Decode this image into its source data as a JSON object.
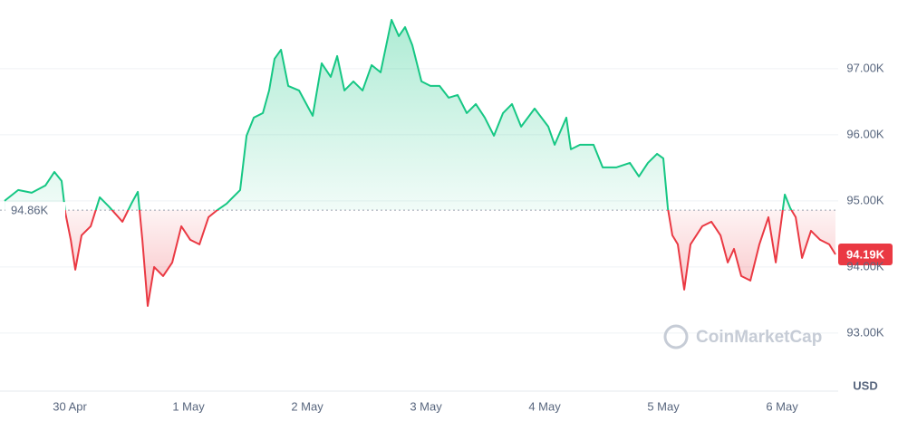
{
  "chart_data": {
    "type": "line",
    "x": [
      -0.55,
      -0.435,
      -0.321,
      -0.206,
      -0.13,
      -0.069,
      -0.038,
      0.008,
      0.046,
      0.099,
      0.176,
      0.252,
      0.328,
      0.443,
      0.519,
      0.573,
      0.611,
      0.656,
      0.71,
      0.786,
      0.863,
      0.939,
      1.015,
      1.092,
      1.168,
      1.244,
      1.321,
      1.435,
      1.489,
      1.55,
      1.626,
      1.679,
      1.725,
      1.779,
      1.84,
      1.931,
      2.046,
      2.122,
      2.198,
      2.252,
      2.313,
      2.389,
      2.466,
      2.542,
      2.618,
      2.71,
      2.771,
      2.824,
      2.885,
      2.962,
      3.038,
      3.115,
      3.191,
      3.267,
      3.344,
      3.42,
      3.496,
      3.573,
      3.649,
      3.725,
      3.802,
      3.916,
      4.031,
      4.084,
      4.183,
      4.221,
      4.298,
      4.412,
      4.489,
      4.603,
      4.718,
      4.794,
      4.87,
      4.947,
      5.0,
      5.038,
      5.076,
      5.122,
      5.176,
      5.229,
      5.328,
      5.405,
      5.481,
      5.542,
      5.595,
      5.656,
      5.733,
      5.809,
      5.885,
      5.947,
      6.023,
      6.069,
      6.115,
      6.168,
      6.244,
      6.321,
      6.397,
      6.45
    ],
    "series": [
      {
        "name": "USD",
        "values": [
          95000,
          95164,
          95123,
          95233,
          95438,
          95301,
          94822,
          94411,
          93959,
          94479,
          94616,
          95055,
          94918,
          94685,
          94959,
          95137,
          94411,
          93411,
          94000,
          93863,
          94068,
          94616,
          94411,
          94342,
          94753,
          94863,
          94959,
          95164,
          95986,
          96260,
          96329,
          96671,
          97151,
          97288,
          96740,
          96671,
          96288,
          97082,
          96877,
          97192,
          96671,
          96808,
          96671,
          97055,
          96945,
          97740,
          97493,
          97630,
          97356,
          96808,
          96740,
          96740,
          96562,
          96603,
          96329,
          96466,
          96260,
          95986,
          96329,
          96466,
          96123,
          96397,
          96123,
          95849,
          96260,
          95781,
          95849,
          95849,
          95507,
          95507,
          95575,
          95370,
          95575,
          95712,
          95644,
          94890,
          94479,
          94342,
          93658,
          94342,
          94616,
          94685,
          94479,
          94068,
          94274,
          93863,
          93795,
          94342,
          94753,
          94068,
          95096,
          94890,
          94753,
          94137,
          94548,
          94411,
          94342,
          94190
        ]
      }
    ],
    "colors": {
      "up": "#16c784",
      "down": "#ea3943"
    },
    "baseline": {
      "value": 94860,
      "label": "94.86K"
    },
    "last_price": {
      "value": 94190,
      "label": "94.19K"
    },
    "xlim": [
      -0.55,
      6.45
    ],
    "xticks": [
      {
        "value": 0,
        "label": "30 Apr"
      },
      {
        "value": 1,
        "label": "1 May"
      },
      {
        "value": 2,
        "label": "2 May"
      },
      {
        "value": 3,
        "label": "3 May"
      },
      {
        "value": 4,
        "label": "4 May"
      },
      {
        "value": 5,
        "label": "5 May"
      },
      {
        "value": 6,
        "label": "6 May"
      }
    ],
    "ylim": [
      92560,
      98040
    ],
    "yticks": [
      {
        "value": 93000,
        "label": "93.00K"
      },
      {
        "value": 94000,
        "label": "94.00K"
      },
      {
        "value": 95000,
        "label": "95.00K"
      },
      {
        "value": 96000,
        "label": "96.00K"
      },
      {
        "value": 97000,
        "label": "97.00K"
      }
    ],
    "y_unit": "USD",
    "watermark": "CoinMarketCap",
    "grid": true
  }
}
